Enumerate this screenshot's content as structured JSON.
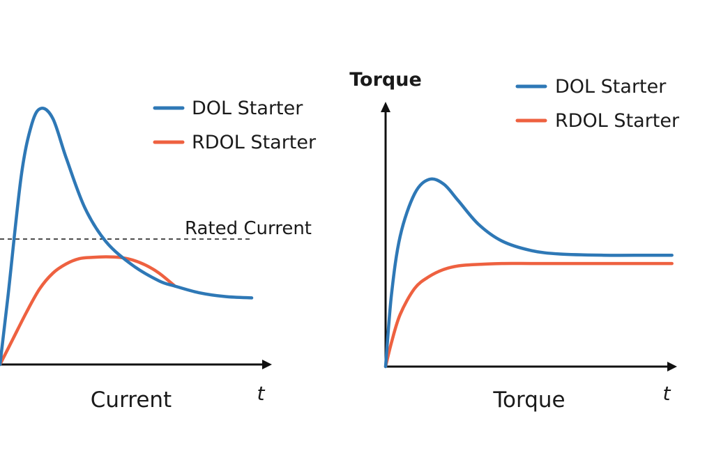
{
  "colors": {
    "dol": "#2E78B6",
    "rdol": "#EE6140",
    "axis": "#111111"
  },
  "chart_data": [
    {
      "type": "line",
      "title": "",
      "xlabel": "t",
      "ylabel": "",
      "caption": "Current",
      "legend_position": "top-right",
      "annotation": {
        "text": "Rated Current",
        "y": 0.49,
        "style": "dashed"
      },
      "x_range": [
        0,
        1
      ],
      "y_range": [
        0,
        1
      ],
      "series": [
        {
          "name": "DOL Starter",
          "color": "#2E78B6",
          "x": [
            0,
            0.03,
            0.08,
            0.12,
            0.155,
            0.2,
            0.25,
            0.32,
            0.4,
            0.5,
            0.6,
            0.66,
            0.75,
            0.85,
            0.95
          ],
          "y": [
            0,
            0.26,
            0.72,
            0.92,
            0.98,
            0.94,
            0.79,
            0.6,
            0.47,
            0.38,
            0.32,
            0.3,
            0.275,
            0.26,
            0.255
          ]
        },
        {
          "name": "RDOL Starter",
          "color": "#EE6140",
          "x": [
            0,
            0.05,
            0.1,
            0.15,
            0.2,
            0.25,
            0.3,
            0.35,
            0.4,
            0.45,
            0.5,
            0.55,
            0.6,
            0.66
          ],
          "y": [
            0,
            0.1,
            0.2,
            0.29,
            0.35,
            0.385,
            0.405,
            0.41,
            0.412,
            0.41,
            0.4,
            0.38,
            0.35,
            0.3
          ]
        }
      ]
    },
    {
      "type": "line",
      "title": "",
      "xlabel": "t",
      "ylabel": "Torque",
      "caption": "Torque",
      "legend_position": "top-right",
      "x_range": [
        0,
        1
      ],
      "y_range": [
        0,
        1
      ],
      "series": [
        {
          "name": "DOL Starter",
          "color": "#2E78B6",
          "x": [
            0,
            0.02,
            0.05,
            0.1,
            0.15,
            0.2,
            0.25,
            0.32,
            0.4,
            0.5,
            0.6,
            0.75,
            0.9,
            0.985
          ],
          "y": [
            0,
            0.3,
            0.55,
            0.73,
            0.79,
            0.77,
            0.7,
            0.6,
            0.53,
            0.49,
            0.475,
            0.47,
            0.47,
            0.47
          ]
        },
        {
          "name": "RDOL Starter",
          "color": "#EE6140",
          "x": [
            0,
            0.02,
            0.05,
            0.1,
            0.15,
            0.2,
            0.25,
            0.3,
            0.4,
            0.5,
            0.6,
            0.75,
            0.9,
            0.985
          ],
          "y": [
            0,
            0.1,
            0.22,
            0.33,
            0.38,
            0.41,
            0.425,
            0.43,
            0.435,
            0.435,
            0.435,
            0.435,
            0.435,
            0.435
          ]
        }
      ]
    }
  ]
}
